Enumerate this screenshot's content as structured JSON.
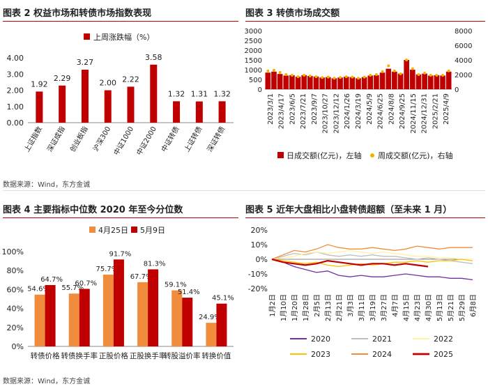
{
  "fig2": {
    "title": "图表 2 权益市场和转债市场指数表现",
    "chart_data": {
      "type": "bar",
      "legend": "上周涨跌幅（%）",
      "legend_position": "top",
      "categories": [
        "上证指数",
        "深证成指",
        "创业板指",
        "沪深300",
        "中证1000",
        "中证2000",
        "中证转债",
        "上证转债",
        "深证转债"
      ],
      "values": [
        1.92,
        2.29,
        3.27,
        2.0,
        2.22,
        3.58,
        1.32,
        1.31,
        1.32
      ],
      "data_labels": [
        "1.92",
        "2.29",
        "3.27",
        "2.00",
        "2.22",
        "3.58",
        "1.32",
        "1.31",
        "1.32"
      ],
      "ylim": [
        0,
        4
      ],
      "yticks": [
        "0.00",
        "1.00",
        "2.00",
        "3.00",
        "4.00"
      ],
      "color": "#c00000"
    }
  },
  "fig3": {
    "title": "图表 3 转债市场成交额",
    "chart_data": {
      "type": "bar",
      "left_ylim": [
        0,
        3000
      ],
      "left_yticks": [
        "0",
        "500",
        "1000",
        "1500",
        "2000",
        "2500",
        "3000"
      ],
      "right_ylim": [
        0,
        8000
      ],
      "right_yticks": [
        "0",
        "2000",
        "4000",
        "6000",
        "8000"
      ],
      "x_ticks": [
        "2023/3/1",
        "2023/4/17",
        "2023/6/5",
        "2023/7/21",
        "2023/9/7",
        "2023/10/27",
        "2023/12/12",
        "2024/1/26",
        "2024/3/19",
        "2024/5/9",
        "2024/6/25",
        "2024/8/8",
        "2024/9/25",
        "2024/11/15",
        "2024/12/31",
        "2025/2/21",
        "2025/4/9"
      ],
      "series": [
        {
          "name": "日成交额(亿元)，左轴",
          "type": "bar",
          "axis": "left",
          "color": "#c00000",
          "values": [
            850,
            900,
            780,
            700,
            720,
            640,
            720,
            680,
            650,
            600,
            620,
            560,
            600,
            640,
            620,
            560,
            620,
            700,
            720,
            850,
            1050,
            900,
            800,
            1500,
            1000,
            760,
            800,
            700,
            720,
            700,
            900
          ]
        },
        {
          "name": "周成交额(亿元)，右轴",
          "type": "scatter",
          "axis": "right",
          "color": "#f0b400",
          "values": [
            2500,
            2600,
            2300,
            2000,
            1900,
            1700,
            1900,
            1800,
            1700,
            1600,
            1650,
            1500,
            1600,
            1700,
            1650,
            1500,
            1650,
            1900,
            2000,
            2400,
            3200,
            2500,
            2100,
            4000,
            2800,
            2000,
            2200,
            1900,
            1900,
            1900,
            2500
          ]
        }
      ]
    }
  },
  "fig4": {
    "title": "图表 4 主要指标中位数 2020 年至今分位数",
    "chart_data": {
      "type": "bar",
      "categories": [
        "转债价格",
        "转债换手率",
        "正股价格",
        "正股换手率",
        "转股溢价率",
        "转换价值"
      ],
      "ylim": [
        0,
        100
      ],
      "yticks": [
        "0%",
        "20%",
        "40%",
        "60%",
        "80%",
        "100%"
      ],
      "series": [
        {
          "name": "4月25日",
          "color": "#f08c3c",
          "values": [
            54.6,
            55.7,
            75.7,
            67.7,
            59.1,
            24.9
          ],
          "labels": [
            "54.6%",
            "55.7%",
            "75.7%",
            "67.7%",
            "59.1%",
            "24.9%"
          ]
        },
        {
          "name": "5月9日",
          "color": "#c00000",
          "values": [
            64.7,
            60.7,
            91.7,
            81.3,
            51.4,
            45.1
          ],
          "labels": [
            "64.7%",
            "60.7%",
            "91.7%",
            "81.3%",
            "51.4%",
            "45.1%"
          ]
        }
      ]
    }
  },
  "fig5": {
    "title": "图表 5 近年大盘相比小盘转债超额（至未来 1 月）",
    "chart_data": {
      "type": "line",
      "ylim": [
        -20,
        20
      ],
      "yticks": [
        "20%",
        "10%",
        "0%",
        "-10%",
        "-20%"
      ],
      "x_ticks": [
        "1月2日",
        "1月10日",
        "1月20日",
        "1月28日",
        "2月5日",
        "2月13日",
        "2月21日",
        "3月3日",
        "3月11日",
        "3月19日",
        "3月27日",
        "4月7日",
        "4月15日",
        "4月23日",
        "4月30日",
        "5月13日",
        "5月21日",
        "5月29日",
        "6月8日"
      ],
      "series": [
        {
          "name": "2020",
          "color": "#7030a0",
          "width": 1.3,
          "values": [
            0,
            -2,
            -5,
            -7,
            -9,
            -8,
            -11,
            -12,
            -11,
            -12,
            -12,
            -11,
            -10,
            -11,
            -12,
            -12,
            -13,
            -13,
            -14
          ]
        },
        {
          "name": "2021",
          "color": "#bfbfbf",
          "width": 1.3,
          "values": [
            0,
            2,
            4,
            3,
            5,
            3,
            2,
            3,
            2,
            3,
            2,
            2,
            1,
            0,
            1,
            0,
            -1,
            -2,
            -3
          ]
        },
        {
          "name": "2022",
          "color": "#fff2a0",
          "width": 1.3,
          "values": [
            0,
            1,
            2,
            4,
            5,
            4,
            5,
            6,
            5,
            4,
            5,
            4,
            3,
            2,
            2,
            1,
            1,
            0,
            0
          ]
        },
        {
          "name": "2023",
          "color": "#ffc000",
          "width": 1.3,
          "values": [
            0,
            -1,
            -2,
            -3,
            -2,
            -4,
            -5,
            -4,
            -3,
            -4,
            -3,
            -2,
            -2,
            -1,
            -2,
            -1,
            -1,
            0,
            -1
          ]
        },
        {
          "name": "2024",
          "color": "#f08c3c",
          "width": 1.3,
          "values": [
            0,
            3,
            6,
            5,
            7,
            10,
            8,
            7,
            7,
            8,
            7,
            6,
            7,
            9,
            8,
            7,
            8,
            8,
            8
          ]
        },
        {
          "name": "2025",
          "color": "#c00000",
          "width": 2.2,
          "values": [
            0,
            -2,
            -3,
            -4,
            -3,
            -1,
            -2,
            -3,
            -4,
            -3,
            -3,
            -4,
            -3,
            -4,
            -5
          ]
        }
      ]
    }
  },
  "footer": {
    "source_top": "数据来源：Wind，东方金诚",
    "source_bottom": "数据来源：Wind，东方金诚"
  }
}
